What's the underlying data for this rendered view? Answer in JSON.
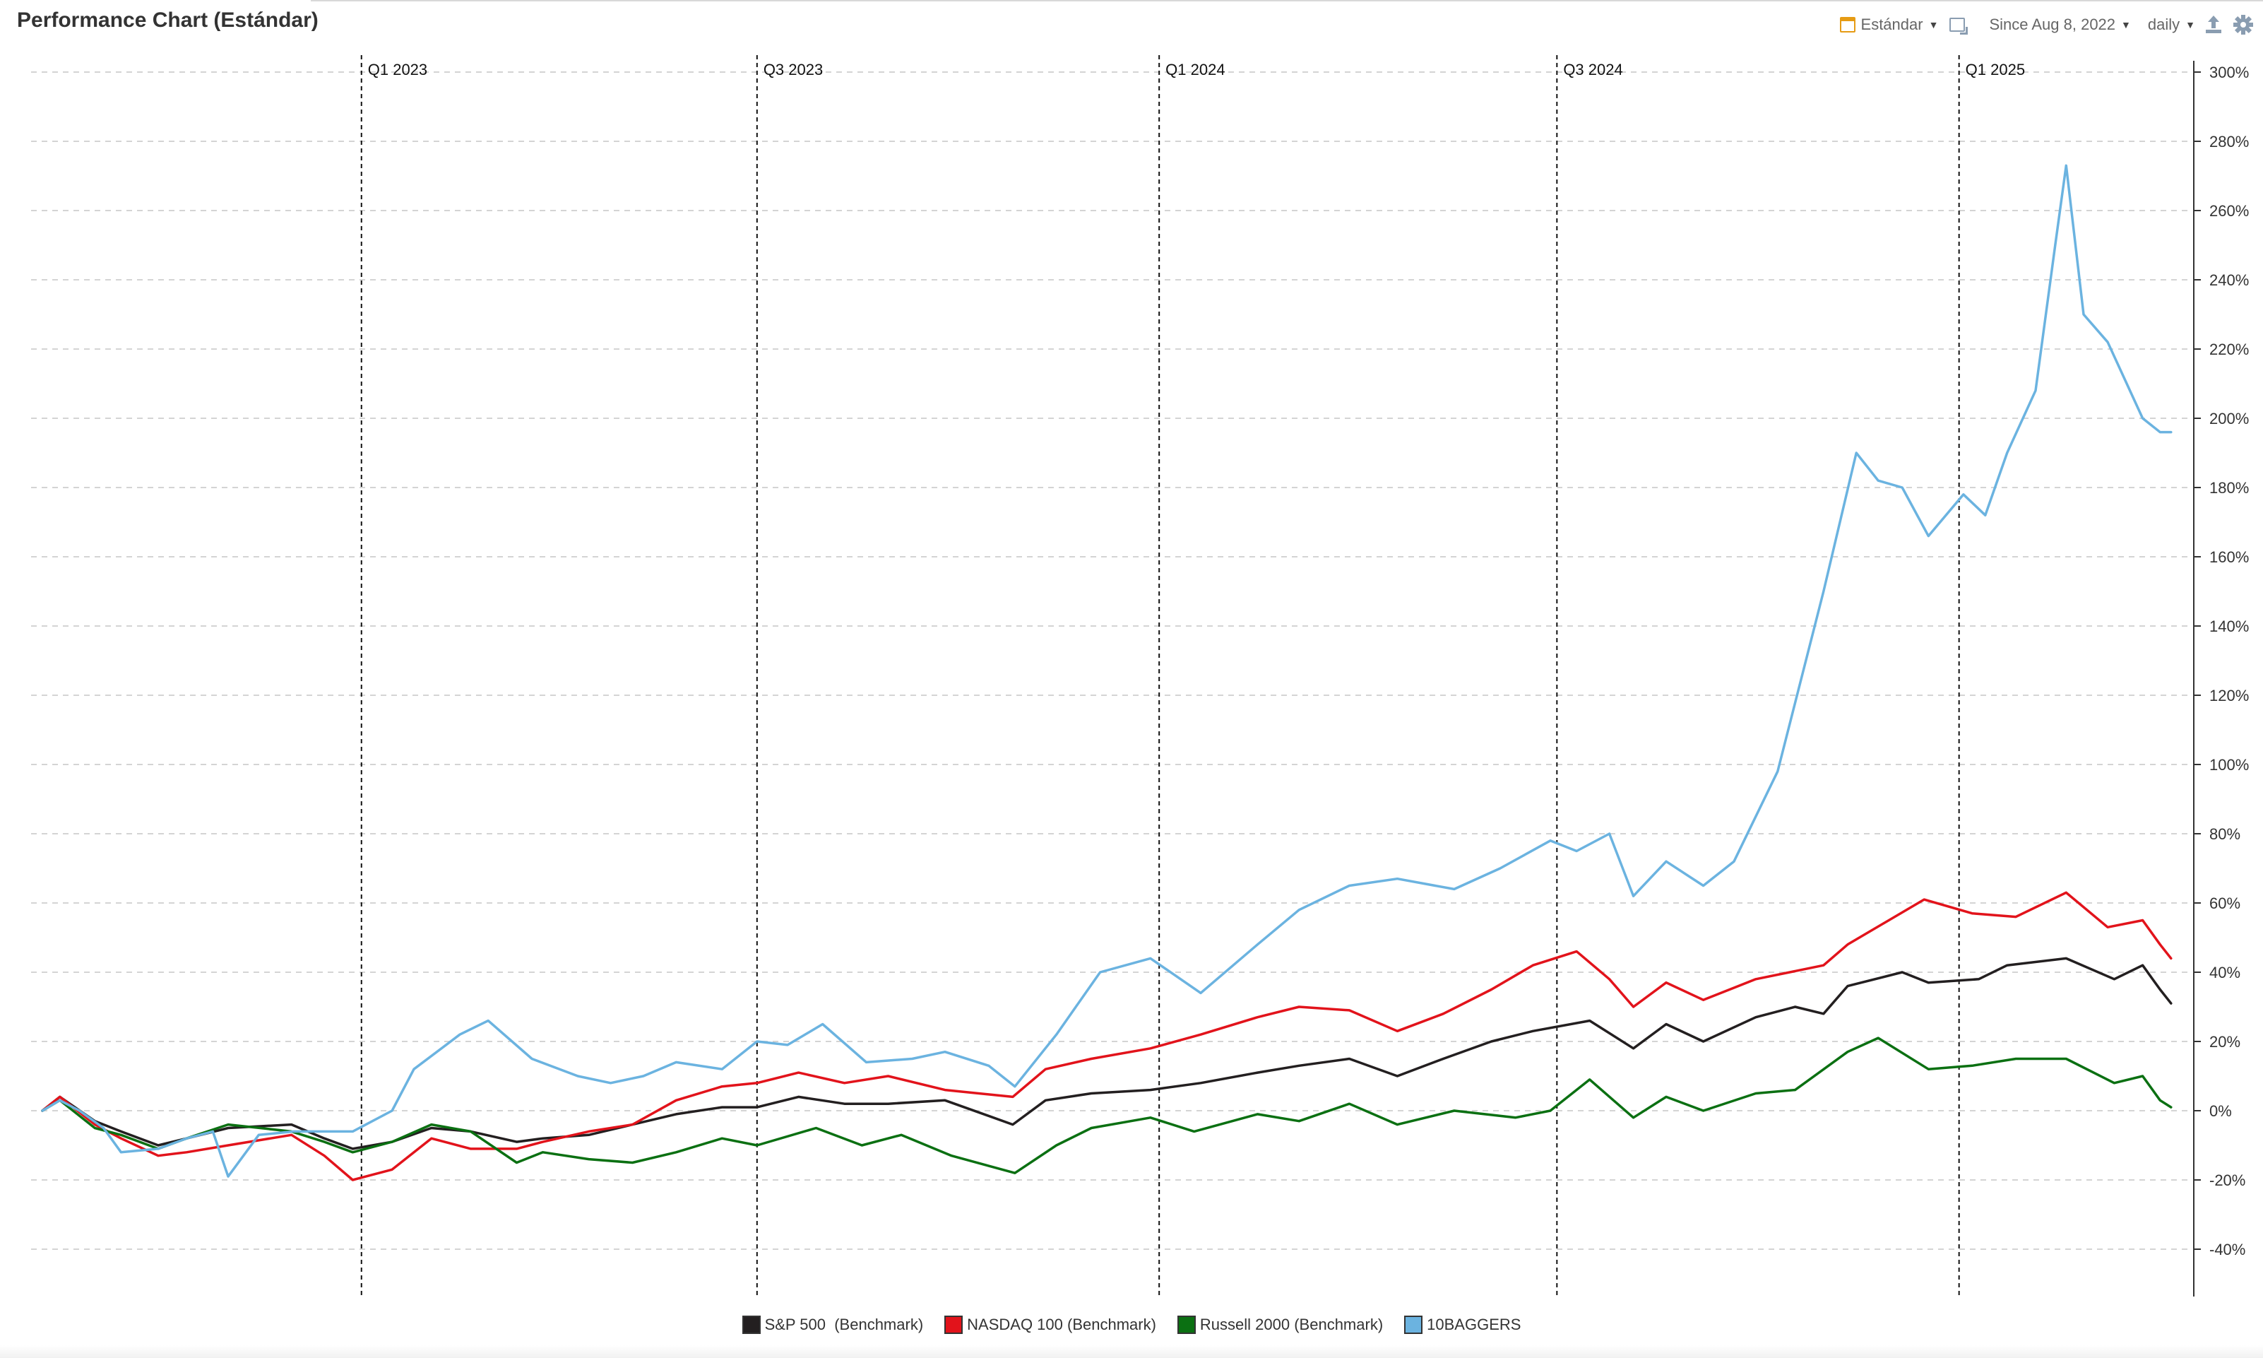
{
  "window": {
    "title": "Performance Chart (Estándar)"
  },
  "toolbar": {
    "view_label": "Estándar",
    "range_label": "Since Aug 8, 2022",
    "interval_label": "daily",
    "calendar_icon": "calendar-icon",
    "fit_icon": "fit-to-screen-icon",
    "export_icon": "export-icon",
    "settings_icon": "gear-icon"
  },
  "chart_data": {
    "type": "line",
    "x_start": "2022-08-08",
    "x_end": "2025-04-10",
    "quarter_markers": [
      {
        "label": "Q1 2023",
        "date": "2023-01-01"
      },
      {
        "label": "Q3 2023",
        "date": "2023-07-01"
      },
      {
        "label": "Q1 2024",
        "date": "2024-01-01"
      },
      {
        "label": "Q3 2024",
        "date": "2024-07-01"
      },
      {
        "label": "Q1 2025",
        "date": "2025-01-01"
      }
    ],
    "ylim": [
      -40,
      300
    ],
    "yticks": [
      300,
      280,
      260,
      240,
      220,
      200,
      180,
      160,
      140,
      120,
      100,
      80,
      60,
      40,
      20,
      0,
      -20,
      -40
    ],
    "ytick_suffix": "%",
    "legend_position": "bottom-center",
    "grid": true,
    "series": [
      {
        "name": "S&P 500  (Benchmark)",
        "color": "#231f20",
        "points": [
          [
            "2022-08-08",
            0
          ],
          [
            "2022-08-16",
            4
          ],
          [
            "2022-09-01",
            -3
          ],
          [
            "2022-09-13",
            -6
          ],
          [
            "2022-09-30",
            -10
          ],
          [
            "2022-10-13",
            -8
          ],
          [
            "2022-11-01",
            -5
          ],
          [
            "2022-11-30",
            -4
          ],
          [
            "2022-12-15",
            -8
          ],
          [
            "2022-12-28",
            -11
          ],
          [
            "2023-01-15",
            -9
          ],
          [
            "2023-02-02",
            -5
          ],
          [
            "2023-02-20",
            -6
          ],
          [
            "2023-03-13",
            -9
          ],
          [
            "2023-03-25",
            -8
          ],
          [
            "2023-04-15",
            -7
          ],
          [
            "2023-05-05",
            -4
          ],
          [
            "2023-05-25",
            -1
          ],
          [
            "2023-06-15",
            1
          ],
          [
            "2023-07-01",
            1
          ],
          [
            "2023-07-20",
            4
          ],
          [
            "2023-08-10",
            2
          ],
          [
            "2023-08-30",
            2
          ],
          [
            "2023-09-25",
            3
          ],
          [
            "2023-10-26",
            -4
          ],
          [
            "2023-11-10",
            3
          ],
          [
            "2023-12-01",
            5
          ],
          [
            "2023-12-28",
            6
          ],
          [
            "2024-01-20",
            8
          ],
          [
            "2024-02-15",
            11
          ],
          [
            "2024-03-05",
            13
          ],
          [
            "2024-03-28",
            15
          ],
          [
            "2024-04-19",
            10
          ],
          [
            "2024-05-10",
            15
          ],
          [
            "2024-06-01",
            20
          ],
          [
            "2024-06-20",
            23
          ],
          [
            "2024-07-16",
            26
          ],
          [
            "2024-08-05",
            18
          ],
          [
            "2024-08-20",
            25
          ],
          [
            "2024-09-06",
            20
          ],
          [
            "2024-09-30",
            27
          ],
          [
            "2024-10-18",
            30
          ],
          [
            "2024-10-31",
            28
          ],
          [
            "2024-11-11",
            36
          ],
          [
            "2024-12-06",
            40
          ],
          [
            "2024-12-18",
            37
          ],
          [
            "2025-01-10",
            38
          ],
          [
            "2025-01-23",
            42
          ],
          [
            "2025-02-19",
            44
          ],
          [
            "2025-03-13",
            38
          ],
          [
            "2025-03-26",
            42
          ],
          [
            "2025-04-03",
            35
          ],
          [
            "2025-04-08",
            31
          ]
        ]
      },
      {
        "name": "NASDAQ 100 (Benchmark)",
        "color": "#e2131b",
        "points": [
          [
            "2022-08-08",
            0
          ],
          [
            "2022-08-16",
            4
          ],
          [
            "2022-09-01",
            -4
          ],
          [
            "2022-09-13",
            -8
          ],
          [
            "2022-09-30",
            -13
          ],
          [
            "2022-10-13",
            -12
          ],
          [
            "2022-11-01",
            -10
          ],
          [
            "2022-11-30",
            -7
          ],
          [
            "2022-12-15",
            -13
          ],
          [
            "2022-12-28",
            -20
          ],
          [
            "2023-01-15",
            -17
          ],
          [
            "2023-02-02",
            -8
          ],
          [
            "2023-02-20",
            -11
          ],
          [
            "2023-03-13",
            -11
          ],
          [
            "2023-03-25",
            -9
          ],
          [
            "2023-04-15",
            -6
          ],
          [
            "2023-05-05",
            -4
          ],
          [
            "2023-05-25",
            3
          ],
          [
            "2023-06-15",
            7
          ],
          [
            "2023-07-01",
            8
          ],
          [
            "2023-07-20",
            11
          ],
          [
            "2023-08-10",
            8
          ],
          [
            "2023-08-30",
            10
          ],
          [
            "2023-09-25",
            6
          ],
          [
            "2023-10-26",
            4
          ],
          [
            "2023-11-10",
            12
          ],
          [
            "2023-12-01",
            15
          ],
          [
            "2023-12-28",
            18
          ],
          [
            "2024-01-20",
            22
          ],
          [
            "2024-02-15",
            27
          ],
          [
            "2024-03-05",
            30
          ],
          [
            "2024-03-28",
            29
          ],
          [
            "2024-04-19",
            23
          ],
          [
            "2024-05-10",
            28
          ],
          [
            "2024-06-01",
            35
          ],
          [
            "2024-06-20",
            42
          ],
          [
            "2024-07-10",
            46
          ],
          [
            "2024-07-25",
            38
          ],
          [
            "2024-08-05",
            30
          ],
          [
            "2024-08-20",
            37
          ],
          [
            "2024-09-06",
            32
          ],
          [
            "2024-09-30",
            38
          ],
          [
            "2024-10-31",
            42
          ],
          [
            "2024-11-11",
            48
          ],
          [
            "2024-12-16",
            61
          ],
          [
            "2025-01-07",
            57
          ],
          [
            "2025-01-27",
            56
          ],
          [
            "2025-02-19",
            63
          ],
          [
            "2025-03-10",
            53
          ],
          [
            "2025-03-26",
            55
          ],
          [
            "2025-04-03",
            48
          ],
          [
            "2025-04-08",
            44
          ]
        ]
      },
      {
        "name": "Russell 2000 (Benchmark)",
        "color": "#0b7012",
        "points": [
          [
            "2022-08-08",
            0
          ],
          [
            "2022-08-16",
            3
          ],
          [
            "2022-09-01",
            -5
          ],
          [
            "2022-09-13",
            -7
          ],
          [
            "2022-09-30",
            -11
          ],
          [
            "2022-10-13",
            -8
          ],
          [
            "2022-11-01",
            -4
          ],
          [
            "2022-11-30",
            -6
          ],
          [
            "2022-12-15",
            -9
          ],
          [
            "2022-12-28",
            -12
          ],
          [
            "2023-01-15",
            -9
          ],
          [
            "2023-02-02",
            -4
          ],
          [
            "2023-02-20",
            -6
          ],
          [
            "2023-03-13",
            -15
          ],
          [
            "2023-03-25",
            -12
          ],
          [
            "2023-04-15",
            -14
          ],
          [
            "2023-05-05",
            -15
          ],
          [
            "2023-05-25",
            -12
          ],
          [
            "2023-06-15",
            -8
          ],
          [
            "2023-07-01",
            -10
          ],
          [
            "2023-07-28",
            -5
          ],
          [
            "2023-08-18",
            -10
          ],
          [
            "2023-09-05",
            -7
          ],
          [
            "2023-09-28",
            -13
          ],
          [
            "2023-10-27",
            -18
          ],
          [
            "2023-11-15",
            -10
          ],
          [
            "2023-12-01",
            -5
          ],
          [
            "2023-12-28",
            -2
          ],
          [
            "2024-01-17",
            -6
          ],
          [
            "2024-02-15",
            -1
          ],
          [
            "2024-03-05",
            -3
          ],
          [
            "2024-03-28",
            2
          ],
          [
            "2024-04-19",
            -4
          ],
          [
            "2024-05-15",
            0
          ],
          [
            "2024-06-12",
            -2
          ],
          [
            "2024-06-28",
            0
          ],
          [
            "2024-07-16",
            9
          ],
          [
            "2024-08-05",
            -2
          ],
          [
            "2024-08-20",
            4
          ],
          [
            "2024-09-06",
            0
          ],
          [
            "2024-09-30",
            5
          ],
          [
            "2024-10-18",
            6
          ],
          [
            "2024-11-11",
            17
          ],
          [
            "2024-11-25",
            21
          ],
          [
            "2024-12-18",
            12
          ],
          [
            "2025-01-07",
            13
          ],
          [
            "2025-01-27",
            15
          ],
          [
            "2025-02-19",
            15
          ],
          [
            "2025-03-13",
            8
          ],
          [
            "2025-03-26",
            10
          ],
          [
            "2025-04-03",
            3
          ],
          [
            "2025-04-08",
            1
          ]
        ]
      },
      {
        "name": "10BAGGERS",
        "color": "#6bb3e0",
        "points": [
          [
            "2022-08-08",
            0
          ],
          [
            "2022-08-16",
            3
          ],
          [
            "2022-08-25",
            0
          ],
          [
            "2022-09-05",
            -5
          ],
          [
            "2022-09-13",
            -12
          ],
          [
            "2022-09-30",
            -11
          ],
          [
            "2022-10-13",
            -8
          ],
          [
            "2022-10-25",
            -6
          ],
          [
            "2022-11-01",
            -19
          ],
          [
            "2022-11-15",
            -7
          ],
          [
            "2022-12-01",
            -6
          ],
          [
            "2022-12-28",
            -6
          ],
          [
            "2023-01-15",
            0
          ],
          [
            "2023-01-25",
            12
          ],
          [
            "2023-02-15",
            22
          ],
          [
            "2023-02-28",
            26
          ],
          [
            "2023-03-20",
            15
          ],
          [
            "2023-04-10",
            10
          ],
          [
            "2023-04-25",
            8
          ],
          [
            "2023-05-10",
            10
          ],
          [
            "2023-05-25",
            14
          ],
          [
            "2023-06-15",
            12
          ],
          [
            "2023-07-01",
            20
          ],
          [
            "2023-07-15",
            19
          ],
          [
            "2023-07-31",
            25
          ],
          [
            "2023-08-20",
            14
          ],
          [
            "2023-09-10",
            15
          ],
          [
            "2023-09-25",
            17
          ],
          [
            "2023-10-15",
            13
          ],
          [
            "2023-10-27",
            7
          ],
          [
            "2023-11-15",
            22
          ],
          [
            "2023-12-05",
            40
          ],
          [
            "2023-12-28",
            44
          ],
          [
            "2024-01-20",
            34
          ],
          [
            "2024-02-15",
            48
          ],
          [
            "2024-03-05",
            58
          ],
          [
            "2024-03-28",
            65
          ],
          [
            "2024-04-19",
            67
          ],
          [
            "2024-05-15",
            64
          ],
          [
            "2024-06-05",
            70
          ],
          [
            "2024-06-28",
            78
          ],
          [
            "2024-07-10",
            75
          ],
          [
            "2024-07-25",
            80
          ],
          [
            "2024-08-05",
            62
          ],
          [
            "2024-08-20",
            72
          ],
          [
            "2024-09-06",
            65
          ],
          [
            "2024-09-20",
            72
          ],
          [
            "2024-10-10",
            98
          ],
          [
            "2024-10-31",
            150
          ],
          [
            "2024-11-15",
            190
          ],
          [
            "2024-11-25",
            182
          ],
          [
            "2024-12-06",
            180
          ],
          [
            "2024-12-18",
            166
          ],
          [
            "2025-01-03",
            178
          ],
          [
            "2025-01-13",
            172
          ],
          [
            "2025-01-23",
            190
          ],
          [
            "2025-02-05",
            208
          ],
          [
            "2025-02-14",
            250
          ],
          [
            "2025-02-19",
            273
          ],
          [
            "2025-02-27",
            230
          ],
          [
            "2025-03-10",
            222
          ],
          [
            "2025-03-26",
            200
          ],
          [
            "2025-04-03",
            196
          ],
          [
            "2025-04-08",
            196
          ]
        ]
      }
    ]
  }
}
